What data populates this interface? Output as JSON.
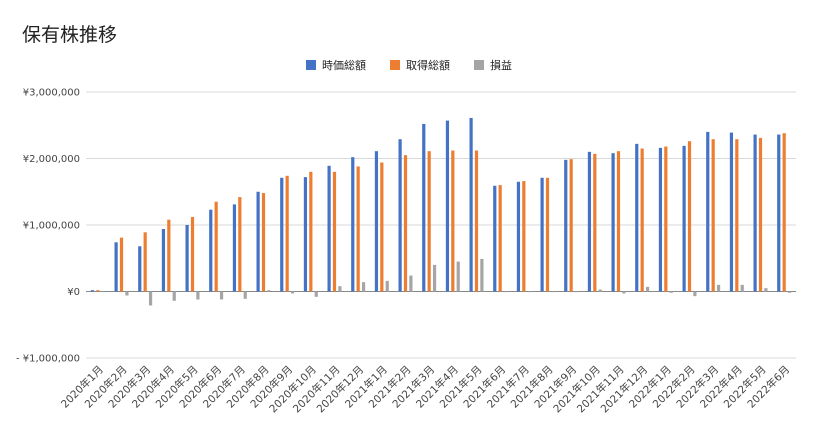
{
  "chart_data": {
    "type": "bar",
    "title": "保有株推移",
    "categories": [
      "2020年1月",
      "2020年2月",
      "2020年3月",
      "2020年4月",
      "2020年5月",
      "2020年6月",
      "2020年7月",
      "2020年8月",
      "2020年9月",
      "2020年10月",
      "2020年11月",
      "2020年12月",
      "2021年1月",
      "2021年2月",
      "2021年3月",
      "2021年4月",
      "2021年5月",
      "2021年6月",
      "2021年7月",
      "2021年8月",
      "2021年9月",
      "2021年10月",
      "2021年11月",
      "2021年12月",
      "2022年1月",
      "2022年2月",
      "2022年3月",
      "2022年4月",
      "2022年5月",
      "2022年6月"
    ],
    "series": [
      {
        "name": "時価総額",
        "color": "#4472c4",
        "values": [
          20000,
          740000,
          680000,
          940000,
          1000000,
          1230000,
          1310000,
          1500000,
          1710000,
          1720000,
          1890000,
          2020000,
          2110000,
          2290000,
          2520000,
          2570000,
          2610000,
          1590000,
          1650000,
          1710000,
          1980000,
          2100000,
          2080000,
          2220000,
          2160000,
          2190000,
          2400000,
          2390000,
          2360000,
          2360000
        ]
      },
      {
        "name": "取得総額",
        "color": "#ed7d31",
        "values": [
          20000,
          810000,
          890000,
          1080000,
          1120000,
          1350000,
          1420000,
          1480000,
          1740000,
          1800000,
          1800000,
          1880000,
          1940000,
          2050000,
          2110000,
          2120000,
          2120000,
          1600000,
          1660000,
          1710000,
          1990000,
          2070000,
          2110000,
          2150000,
          2180000,
          2260000,
          2290000,
          2290000,
          2310000,
          2380000
        ]
      },
      {
        "name": "損益",
        "color": "#a5a5a5",
        "values": [
          0,
          -60000,
          -210000,
          -140000,
          -120000,
          -120000,
          -110000,
          20000,
          -30000,
          -80000,
          80000,
          140000,
          160000,
          240000,
          400000,
          450000,
          490000,
          -10000,
          -10000,
          0,
          -10000,
          30000,
          -30000,
          70000,
          -20000,
          -70000,
          100000,
          100000,
          50000,
          -20000
        ]
      }
    ],
    "ylim": [
      -1000000,
      3000000
    ],
    "yticks": [
      {
        "value": 3000000,
        "label": "¥3,000,000"
      },
      {
        "value": 2000000,
        "label": "¥2,000,000"
      },
      {
        "value": 1000000,
        "label": "¥1,000,000"
      },
      {
        "value": 0,
        "label": "¥0"
      },
      {
        "value": -1000000,
        "label": "- ¥1,000,000"
      }
    ],
    "grid": true,
    "legend_position": "top"
  }
}
